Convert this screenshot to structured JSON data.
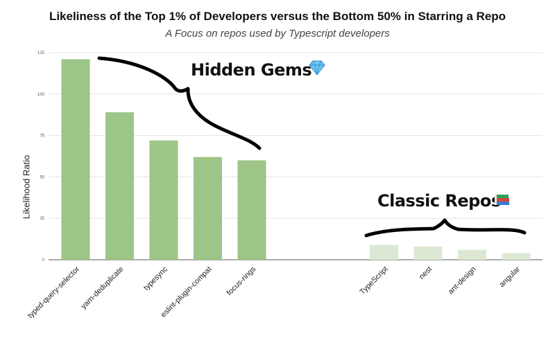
{
  "chart_data": {
    "type": "bar",
    "title": "Likeliness of the Top 1% of Developers versus the Bottom 50% in Starring a Repo",
    "subtitle": "A Focus on repos used by Typescript developers",
    "xlabel": "",
    "ylabel": "Likelihood Ratio",
    "ylim": [
      0,
      125
    ],
    "yticks": [
      0,
      25,
      50,
      75,
      100,
      125
    ],
    "grid": true,
    "groups": [
      {
        "name": "Hidden Gems",
        "annotation": "Hidden Gems",
        "annotation_icon": "gem-icon",
        "color": "#9cc587",
        "categories": [
          "typed-query-selector",
          "yarn-deduplicate",
          "typesync",
          "eslint-plugin-compat",
          "focus-rings"
        ],
        "values": [
          121,
          89,
          72,
          62,
          60
        ]
      },
      {
        "name": "Classic Repos",
        "annotation": "Classic Repos",
        "annotation_icon": "books-icon",
        "color": "#dde8d4",
        "categories": [
          "TypeScript",
          "nest",
          "ant-design",
          "angular"
        ],
        "values": [
          9,
          8,
          6,
          4
        ]
      }
    ]
  },
  "colors": {
    "grid": "#e3e3e3",
    "axis": "#555555",
    "brace": "#000000"
  }
}
